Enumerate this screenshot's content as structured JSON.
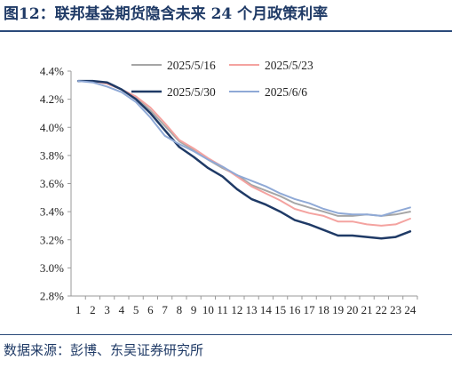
{
  "title": "图12：联邦基金期货隐含未来 24 个月政策利率",
  "source": "数据来源：彭博、东吴证券研究所",
  "chart_data": {
    "type": "line",
    "title": "",
    "xlabel": "",
    "ylabel": "",
    "categories": [
      1,
      2,
      3,
      4,
      5,
      6,
      7,
      8,
      9,
      10,
      11,
      12,
      13,
      14,
      15,
      16,
      17,
      18,
      19,
      20,
      21,
      22,
      23,
      24
    ],
    "y_ticks": [
      "2.8%",
      "3.0%",
      "3.2%",
      "3.4%",
      "3.6%",
      "3.8%",
      "4.0%",
      "4.2%",
      "4.4%"
    ],
    "ylim": [
      2.8,
      4.4
    ],
    "grid": false,
    "legend_placement": "top-center",
    "series": [
      {
        "name": "2025/5/16",
        "color": "#a6a6a6",
        "values": [
          4.33,
          4.33,
          4.31,
          4.27,
          4.21,
          4.12,
          4.01,
          3.9,
          3.84,
          3.77,
          3.71,
          3.66,
          3.59,
          3.55,
          3.51,
          3.46,
          3.43,
          3.4,
          3.37,
          3.37,
          3.38,
          3.37,
          3.38,
          3.4
        ]
      },
      {
        "name": "2025/5/23",
        "color": "#f4a3a0",
        "values": [
          4.33,
          4.33,
          4.31,
          4.27,
          4.22,
          4.14,
          4.03,
          3.91,
          3.85,
          3.78,
          3.72,
          3.65,
          3.58,
          3.53,
          3.48,
          3.42,
          3.39,
          3.37,
          3.33,
          3.33,
          3.31,
          3.3,
          3.31,
          3.35
        ]
      },
      {
        "name": "2025/5/30",
        "color": "#1f3a66",
        "values": [
          4.33,
          4.33,
          4.32,
          4.27,
          4.2,
          4.1,
          3.98,
          3.86,
          3.79,
          3.71,
          3.65,
          3.56,
          3.49,
          3.45,
          3.4,
          3.34,
          3.31,
          3.27,
          3.23,
          3.23,
          3.22,
          3.21,
          3.22,
          3.26
        ]
      },
      {
        "name": "2025/6/6",
        "color": "#8fa9d6",
        "values": [
          4.33,
          4.32,
          4.29,
          4.25,
          4.18,
          4.07,
          3.94,
          3.88,
          3.83,
          3.77,
          3.72,
          3.66,
          3.62,
          3.58,
          3.53,
          3.49,
          3.46,
          3.42,
          3.39,
          3.38,
          3.38,
          3.37,
          3.4,
          3.43
        ]
      }
    ]
  }
}
